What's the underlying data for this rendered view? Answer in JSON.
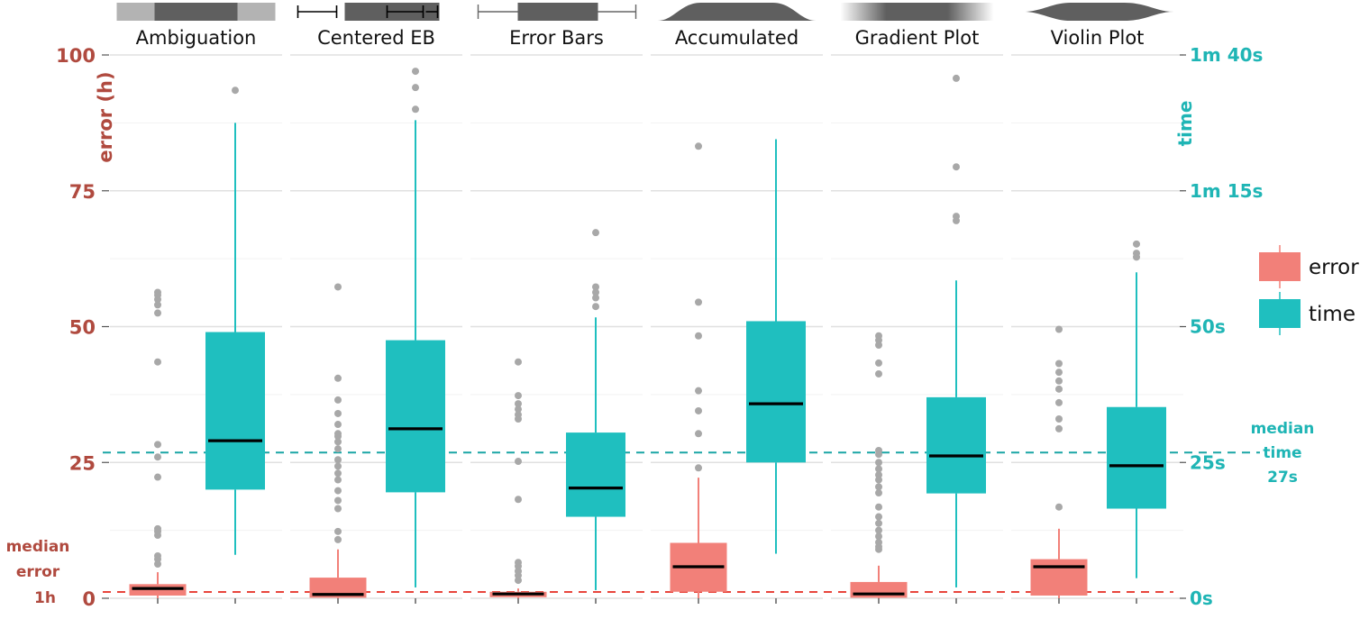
{
  "chart_data": {
    "type": "box",
    "panels": [
      {
        "label": "Ambiguation",
        "error": {
          "q1": 0.5,
          "median": 1.8,
          "q3": 2.6,
          "whisker_low": 0,
          "whisker_high": 4.8,
          "outliers": [
            6.3,
            7.2,
            7.8,
            11.6,
            12.3,
            12.8,
            22.3,
            26.0,
            28.3,
            43.5,
            52.5,
            54.0,
            55.0,
            55.8,
            56.3
          ]
        },
        "time": {
          "q1": 20.0,
          "median": 29.0,
          "q3": 49.0,
          "whisker_low": 8.0,
          "whisker_high": 87.5,
          "outliers": [
            93.5
          ]
        }
      },
      {
        "label": "Centered EB",
        "error": {
          "q1": 0.1,
          "median": 0.7,
          "q3": 3.8,
          "whisker_low": 0,
          "whisker_high": 9.0,
          "outliers": [
            10.8,
            12.3,
            16.5,
            18.0,
            19.8,
            21.8,
            23.0,
            24.3,
            25.5,
            27.5,
            28.8,
            29.8,
            30.3,
            32.0,
            34.0,
            36.5,
            40.5,
            57.3
          ]
        },
        "time": {
          "q1": 19.5,
          "median": 31.2,
          "q3": 47.5,
          "whisker_low": 2.0,
          "whisker_high": 88.0,
          "outliers": [
            90.0,
            94.0,
            97.0
          ]
        }
      },
      {
        "label": "Error Bars",
        "error": {
          "q1": 0.2,
          "median": 0.8,
          "q3": 1.2,
          "whisker_low": 0,
          "whisker_high": 1.8,
          "outliers": [
            3.3,
            4.2,
            5.0,
            5.9,
            6.6,
            18.2,
            25.2,
            33.0,
            33.8,
            34.8,
            35.8,
            37.3,
            43.5
          ]
        },
        "time": {
          "q1": 15.0,
          "median": 20.3,
          "q3": 30.5,
          "whisker_low": 1.5,
          "whisker_high": 51.7,
          "outliers": [
            53.7,
            55.3,
            56.3,
            57.3,
            67.3
          ]
        }
      },
      {
        "label": "Accumulated",
        "error": {
          "q1": 1.2,
          "median": 5.8,
          "q3": 10.2,
          "whisker_low": 0,
          "whisker_high": 22.2,
          "outliers": [
            24.0,
            30.3,
            34.5,
            38.2,
            48.3,
            54.5,
            83.2
          ]
        },
        "time": {
          "q1": 25.0,
          "median": 35.8,
          "q3": 51.0,
          "whisker_low": 8.2,
          "whisker_high": 84.5,
          "outliers": []
        }
      },
      {
        "label": "Gradient Plot",
        "error": {
          "q1": 0.1,
          "median": 0.8,
          "q3": 3.0,
          "whisker_low": 0,
          "whisker_high": 6.0,
          "outliers": [
            9.0,
            9.5,
            10.3,
            11.4,
            12.5,
            13.8,
            15.0,
            16.8,
            19.4,
            20.5,
            21.8,
            22.7,
            23.8,
            25.0,
            26.5,
            27.2,
            41.3,
            43.3,
            46.6,
            47.5,
            48.3
          ]
        },
        "time": {
          "q1": 19.3,
          "median": 26.2,
          "q3": 37.0,
          "whisker_low": 2.0,
          "whisker_high": 58.5,
          "outliers": [
            69.5,
            70.3,
            79.4,
            95.7
          ]
        }
      },
      {
        "label": "Violin Plot",
        "error": {
          "q1": 0.5,
          "median": 5.8,
          "q3": 7.2,
          "whisker_low": 0,
          "whisker_high": 12.8,
          "outliers": [
            16.8,
            31.2,
            33.0,
            36.0,
            38.5,
            40.0,
            41.6,
            43.2,
            49.5
          ]
        },
        "time": {
          "q1": 16.5,
          "median": 24.4,
          "q3": 35.2,
          "whisker_low": 3.7,
          "whisker_high": 60.0,
          "outliers": [
            62.8,
            63.5,
            65.2
          ]
        }
      }
    ],
    "left_axis": {
      "label": "error (h)",
      "ticks": [
        "0",
        "25",
        "50",
        "75",
        "100"
      ],
      "tick_values": [
        0,
        25,
        50,
        75,
        100
      ],
      "ylim": [
        0,
        100
      ]
    },
    "right_axis": {
      "label": "time",
      "ticks": [
        "0s",
        "25s",
        "50s",
        "1m 15s",
        "1m 40s"
      ],
      "tick_values": [
        0,
        25,
        50,
        75,
        100
      ]
    },
    "reference_lines": [
      {
        "name": "median error",
        "value": 1,
        "color": "#e8453c",
        "label_lines": [
          "median",
          "error",
          "1h"
        ]
      },
      {
        "name": "median time",
        "value": 27,
        "color": "#1aa6a6",
        "label_lines": [
          "median",
          "time",
          "27s"
        ]
      }
    ],
    "legend": {
      "position": "right",
      "items": [
        {
          "label": "error",
          "color": "#f28079"
        },
        {
          "label": "time",
          "color": "#1fbfbf"
        }
      ]
    },
    "colors": {
      "error": "#f28079",
      "time": "#1fbfbf",
      "outlier": "#a8a8a8",
      "median": "#000000",
      "left_axis": "#b04a3f",
      "right_axis": "#1fb5b5",
      "grid": "#e3e3e3"
    },
    "grid": true,
    "panel_icons": [
      "ambiguation-icon",
      "centered-error-bar-icon",
      "error-bars-icon",
      "accumulated-icon",
      "gradient-plot-icon",
      "violin-plot-icon"
    ]
  }
}
